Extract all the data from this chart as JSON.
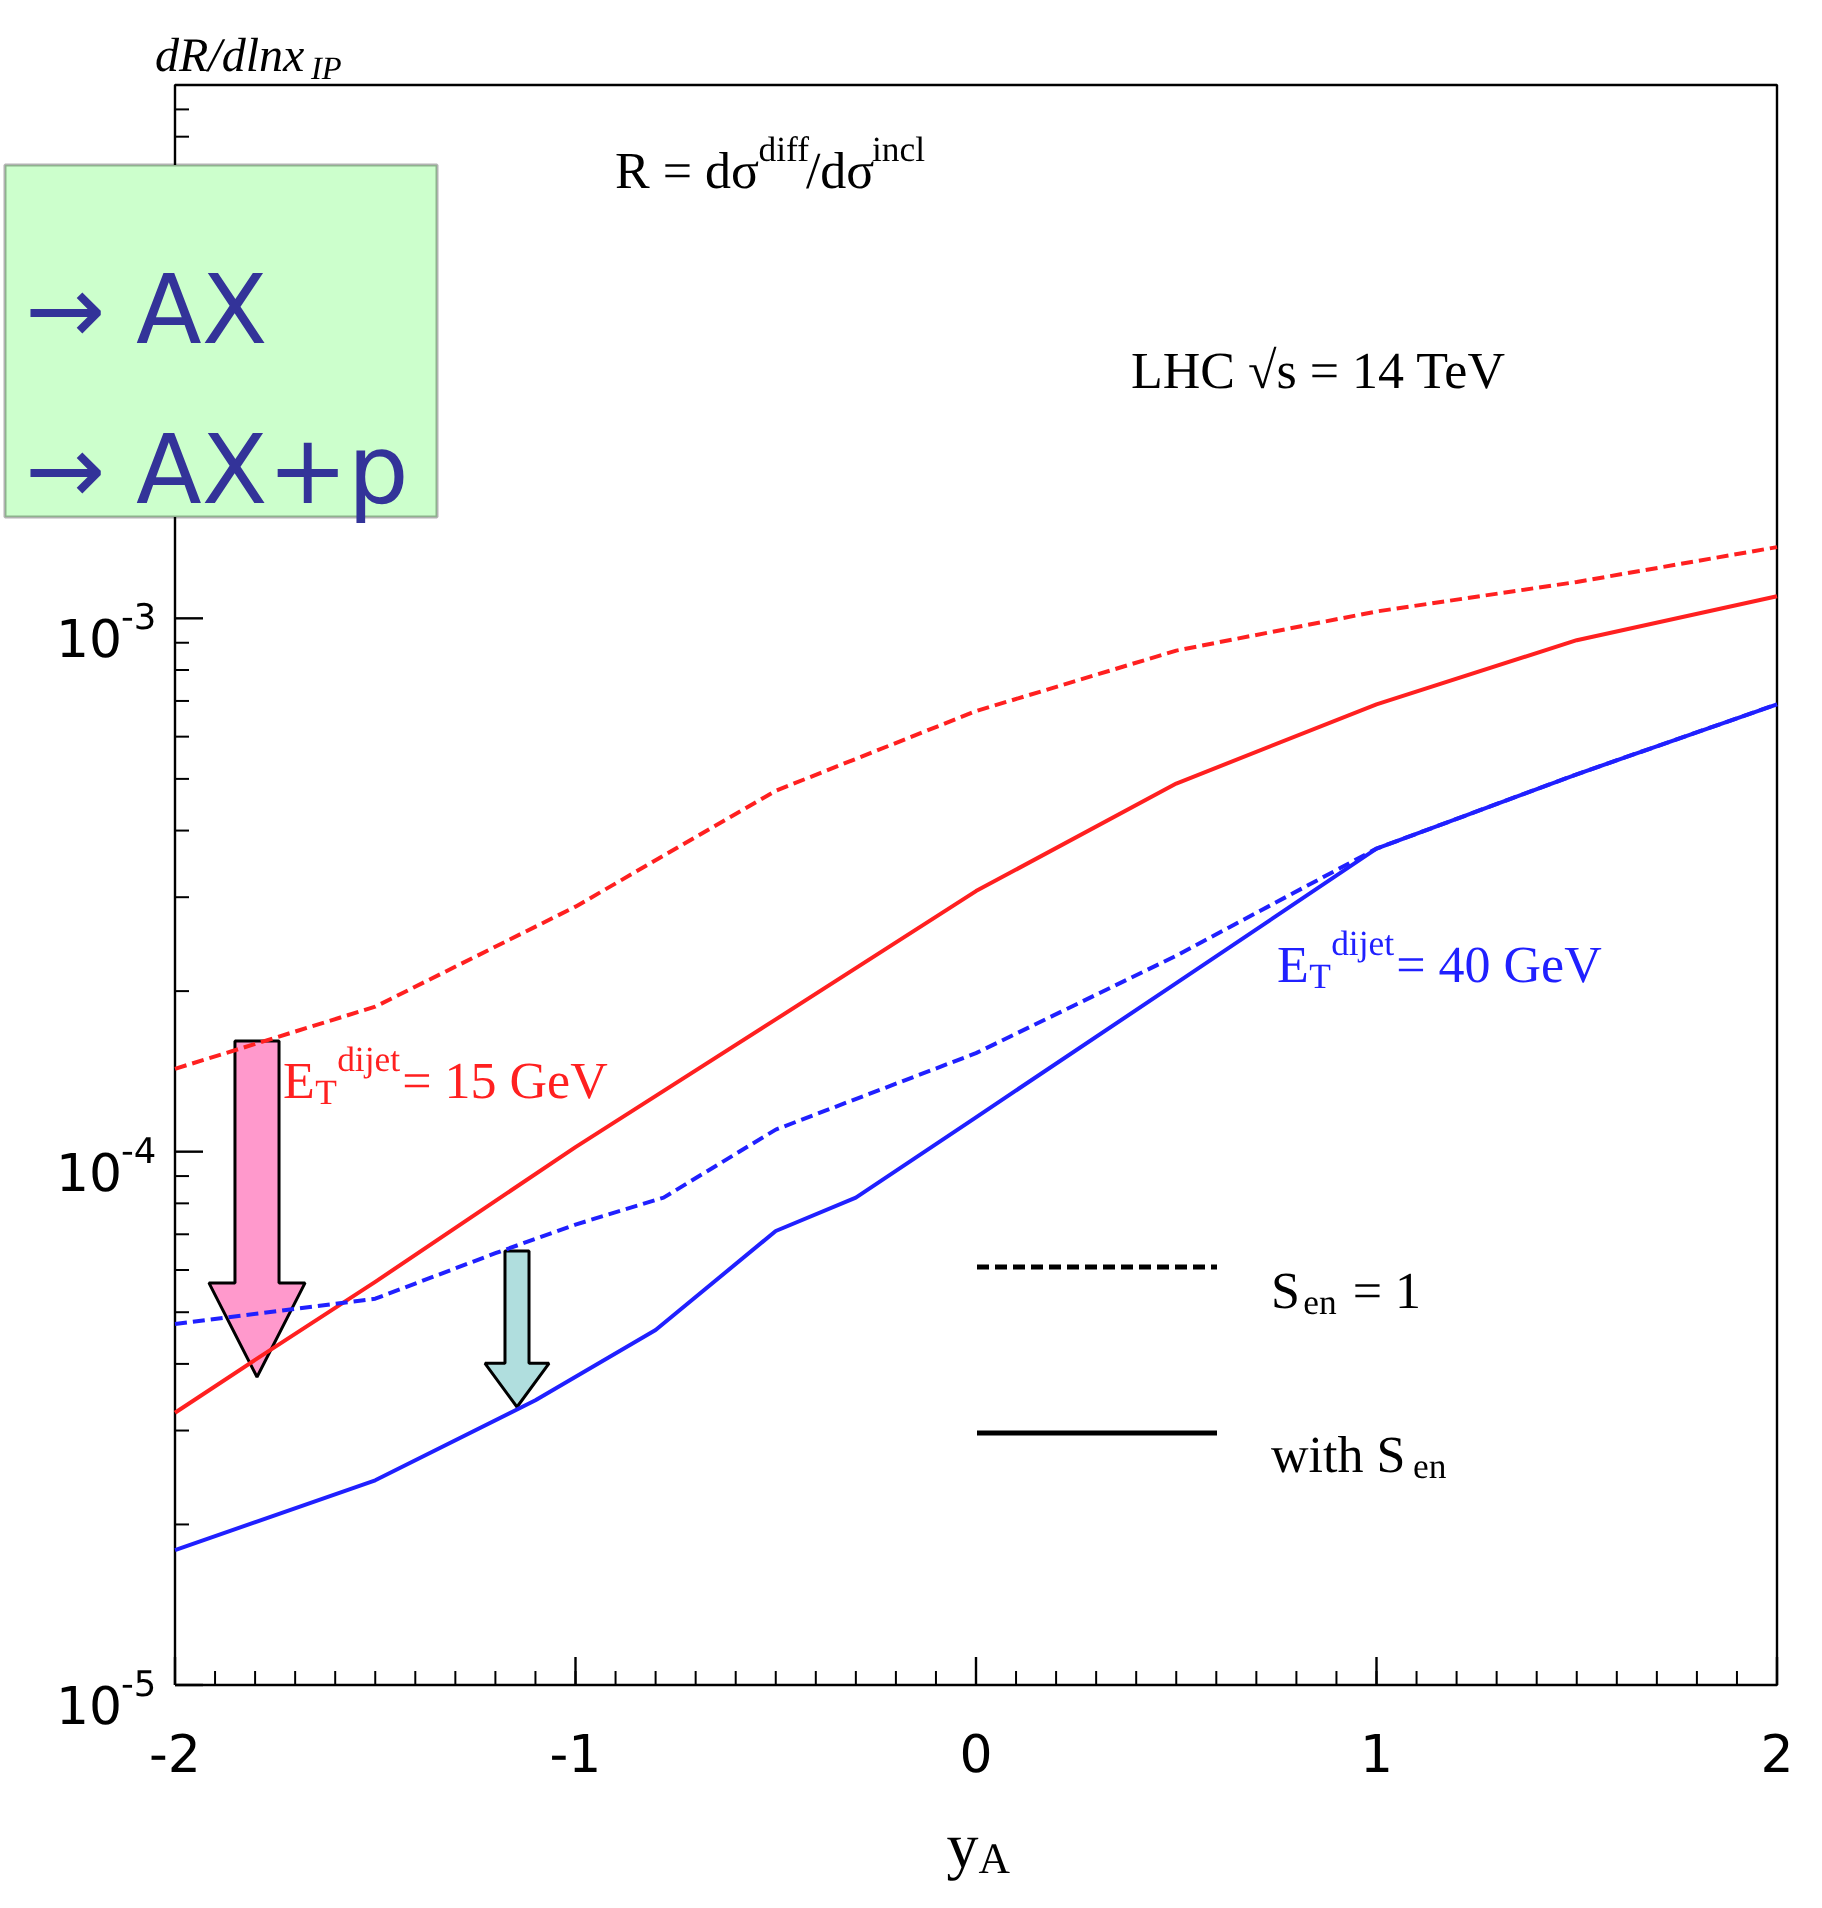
{
  "chart_data": {
    "type": "line",
    "xlabel": "y$_{A}$",
    "ylabel": "dR/dlnx$_{IP}$",
    "log": "y",
    "xlim": [
      -2,
      2
    ],
    "ylim": [
      1e-05,
      0.01
    ],
    "xticks": [
      -2,
      -1,
      0,
      1,
      2
    ],
    "yticks": [
      {
        "value": 1e-05,
        "label": "10$^{-5}$"
      },
      {
        "value": 0.0001,
        "label": "10$^{-4}$"
      },
      {
        "value": 0.001,
        "label": "10$^{-3}$"
      }
    ],
    "grid": false,
    "annotations": [
      "R = dσ$^{diff}$/dσ$^{incl}$",
      "LHC  √s = 14 TeV",
      "E$_{T}$$^{dijet}$= 15 GeV",
      "E$_{T}$$^{dijet}$= 40 GeV",
      "S$_{en}$ = 1",
      "with S$_{en}$",
      "→ AX",
      "→ AX+p"
    ],
    "series": [
      {
        "color": "#ff2020",
        "line_style": "dashed",
        "x": [
          -2,
          -1.5,
          -1,
          -0.5,
          0,
          0.5,
          1,
          1.5,
          2
        ],
        "values": [
          0.000143,
          0.000187,
          0.000288,
          0.000475,
          0.00067,
          0.00087,
          0.00103,
          0.00117,
          0.00136
        ]
      },
      {
        "color": "#ff2020",
        "line_style": "solid",
        "x": [
          -2,
          -1.8,
          -1.5,
          -1,
          -0.5,
          0,
          0.5,
          1,
          1.5,
          2
        ],
        "values": [
          3.24e-05,
          4.07e-05,
          5.7e-05,
          0.000102,
          0.000177,
          0.000308,
          0.00049,
          0.00069,
          0.00091,
          0.0011
        ]
      },
      {
        "color": "#2020ff",
        "line_style": "dashed",
        "x": [
          -2,
          -1.5,
          -1.2,
          -1,
          -0.78,
          -0.5,
          0,
          0.5,
          1,
          1.5,
          2
        ],
        "values": [
          4.75e-05,
          5.3e-05,
          6.45e-05,
          7.3e-05,
          8.2e-05,
          0.00011,
          0.000153,
          0.000233,
          0.00037,
          0.00051,
          0.00069
        ]
      },
      {
        "color": "#2020ff",
        "line_style": "solid",
        "x": [
          -2,
          -1.5,
          -1.1,
          -0.8,
          -0.5,
          -0.3,
          0,
          0.5,
          1,
          1.5,
          2
        ],
        "values": [
          1.79e-05,
          2.42e-05,
          3.42e-05,
          4.63e-05,
          7.1e-05,
          8.2e-05,
          0.000116,
          0.000207,
          0.00037,
          0.00051,
          0.00069
        ]
      }
    ]
  }
}
